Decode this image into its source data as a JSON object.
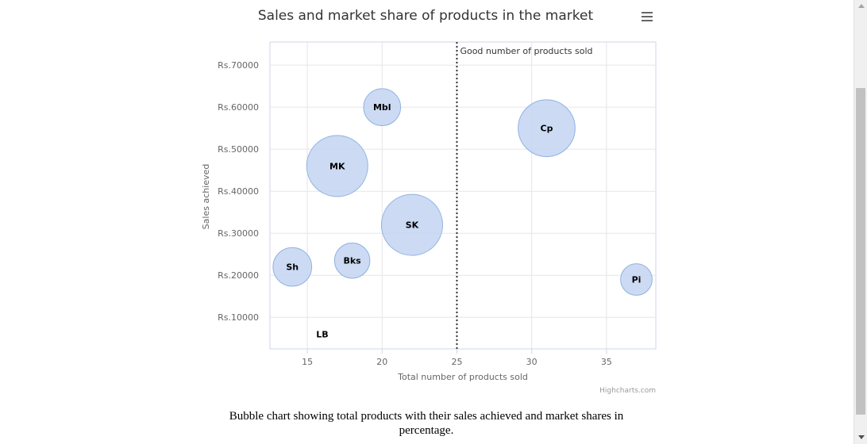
{
  "chart_data": {
    "type": "bubble",
    "title": "Sales and market share of products in the market",
    "xlabel": "Total number of products sold",
    "ylabel": "Sales achieved",
    "xlim": [
      12.5,
      38.3
    ],
    "ylim": [
      2500,
      75500
    ],
    "x_ticks": [
      15,
      20,
      25,
      30,
      35
    ],
    "y_ticks": [
      10000,
      20000,
      30000,
      40000,
      50000,
      60000,
      70000
    ],
    "y_tick_prefix": "Rs.",
    "grid": true,
    "plot_line": {
      "x": 25,
      "label": "Good number of products sold",
      "style": "dotted"
    },
    "credits": "Highcharts.com",
    "series": [
      {
        "points": [
          {
            "name": "LB",
            "x": 16,
            "y": 6000,
            "z": 0
          },
          {
            "name": "Sh",
            "x": 14,
            "y": 22000,
            "z": 6
          },
          {
            "name": "Bks",
            "x": 18,
            "y": 23500,
            "z": 5
          },
          {
            "name": "SK",
            "x": 22,
            "y": 32000,
            "z": 15
          },
          {
            "name": "MK",
            "x": 17,
            "y": 46000,
            "z": 15
          },
          {
            "name": "Mbl",
            "x": 20,
            "y": 60000,
            "z": 5.5
          },
          {
            "name": "Cp",
            "x": 31,
            "y": 55000,
            "z": 13
          },
          {
            "name": "Pi",
            "x": 37,
            "y": 19000,
            "z": 4
          }
        ]
      }
    ]
  },
  "caption": "Bubble chart showing total products with their sales achieved and market shares in percentage.",
  "colors": {
    "bubble_fill": "#c3d5f1",
    "bubble_stroke": "#8fb2e3",
    "grid": "#e6e6e6",
    "axis_text": "#666666",
    "title_text": "#333333"
  },
  "icons": {
    "menu": "hamburger-menu-icon"
  }
}
